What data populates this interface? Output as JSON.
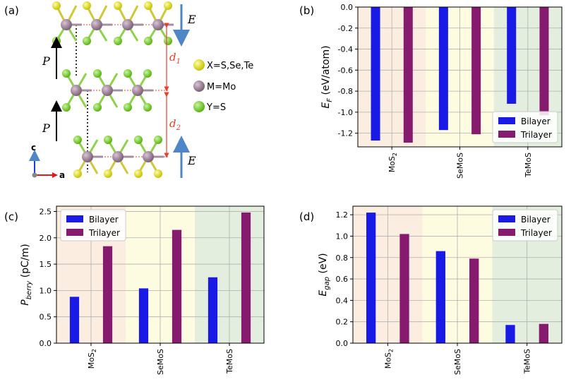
{
  "panels": {
    "a": {
      "tag": "(a)",
      "legend": [
        {
          "label": "X=S,Se,Te",
          "color": "#e3dc16"
        },
        {
          "label": "M=Mo",
          "color": "#9a7e96"
        },
        {
          "label": "Y=S",
          "color": "#7ad12a"
        }
      ],
      "labels": {
        "P_top": "P",
        "P_bottom": "P",
        "E_top": "E",
        "E_bottom": "E",
        "d1": "d",
        "d1_sub": "1",
        "d2": "d",
        "d2_sub": "2",
        "axis_c": "c",
        "axis_a": "a"
      },
      "colors": {
        "polarization_arrow": "#000000",
        "field_arrow": "#4f86c6",
        "distance": "#e5402d"
      }
    }
  },
  "chart_data": [
    {
      "panel": "(b)",
      "type": "bar",
      "categories": [
        "MoS2",
        "SeMoS",
        "TeMoS"
      ],
      "category_labels": [
        {
          "main": "MoS",
          "sub": "2"
        },
        {
          "main": "SeMoS",
          "sub": ""
        },
        {
          "main": "TeMoS",
          "sub": ""
        }
      ],
      "series": [
        {
          "name": "Bilayer",
          "color": "#1a1ae6",
          "values": [
            -1.27,
            -1.17,
            -0.92
          ]
        },
        {
          "name": "Trilayer",
          "color": "#861a6f",
          "values": [
            -1.29,
            -1.21,
            -1.03
          ]
        }
      ],
      "ylabel": {
        "main": "E",
        "sub": "F",
        "rest": " (eV/atom)"
      },
      "ylim": [
        -1.33,
        0.0
      ],
      "yticks": [
        -1.2,
        -1.0,
        -0.8,
        -0.6,
        -0.4,
        -0.2,
        0.0
      ],
      "ytick_labels": [
        "-1.2",
        "-1.0",
        "-0.8",
        "-0.6",
        "-0.4",
        "-0.2",
        "0.0"
      ],
      "grid": true,
      "legend_position": "lower-right",
      "backgrounds": [
        "#fbeee0",
        "#fdfbe0",
        "#e3eedf"
      ]
    },
    {
      "panel": "(c)",
      "type": "bar",
      "categories": [
        "MoS2",
        "SeMoS",
        "TeMoS"
      ],
      "category_labels": [
        {
          "main": "MoS",
          "sub": "2"
        },
        {
          "main": "SeMoS",
          "sub": ""
        },
        {
          "main": "TeMoS",
          "sub": ""
        }
      ],
      "series": [
        {
          "name": "Bilayer",
          "color": "#1a1ae6",
          "values": [
            0.88,
            1.04,
            1.25
          ]
        },
        {
          "name": "Trilayer",
          "color": "#861a6f",
          "values": [
            1.84,
            2.15,
            2.48
          ]
        }
      ],
      "ylabel": {
        "main": "P",
        "sub": "berry",
        "rest": " (pC/m)"
      },
      "ylim": [
        0.0,
        2.6
      ],
      "yticks": [
        0.0,
        0.5,
        1.0,
        1.5,
        2.0,
        2.5
      ],
      "ytick_labels": [
        "0.0",
        "0.5",
        "1.0",
        "1.5",
        "2.0",
        "2.5"
      ],
      "grid": true,
      "legend_position": "top-left",
      "backgrounds": [
        "#fbeee0",
        "#fdfbe0",
        "#e3eedf"
      ]
    },
    {
      "panel": "(d)",
      "type": "bar",
      "categories": [
        "MoS2",
        "SeMoS",
        "TeMoS"
      ],
      "category_labels": [
        {
          "main": "MoS",
          "sub": "2"
        },
        {
          "main": "SeMoS",
          "sub": ""
        },
        {
          "main": "TeMoS",
          "sub": ""
        }
      ],
      "series": [
        {
          "name": "Bilayer",
          "color": "#1a1ae6",
          "values": [
            1.22,
            0.86,
            0.17
          ]
        },
        {
          "name": "Trilayer",
          "color": "#861a6f",
          "values": [
            1.02,
            0.79,
            0.18
          ]
        }
      ],
      "ylabel": {
        "main": "E",
        "sub": "gap",
        "rest": " (eV)"
      },
      "ylim": [
        0.0,
        1.28
      ],
      "yticks": [
        0.0,
        0.2,
        0.4,
        0.6,
        0.8,
        1.0,
        1.2
      ],
      "ytick_labels": [
        "0.0",
        "0.2",
        "0.4",
        "0.6",
        "0.8",
        "1.0",
        "1.2"
      ],
      "grid": true,
      "legend_position": "top-right",
      "backgrounds": [
        "#fbeee0",
        "#fdfbe0",
        "#e3eedf"
      ]
    }
  ]
}
